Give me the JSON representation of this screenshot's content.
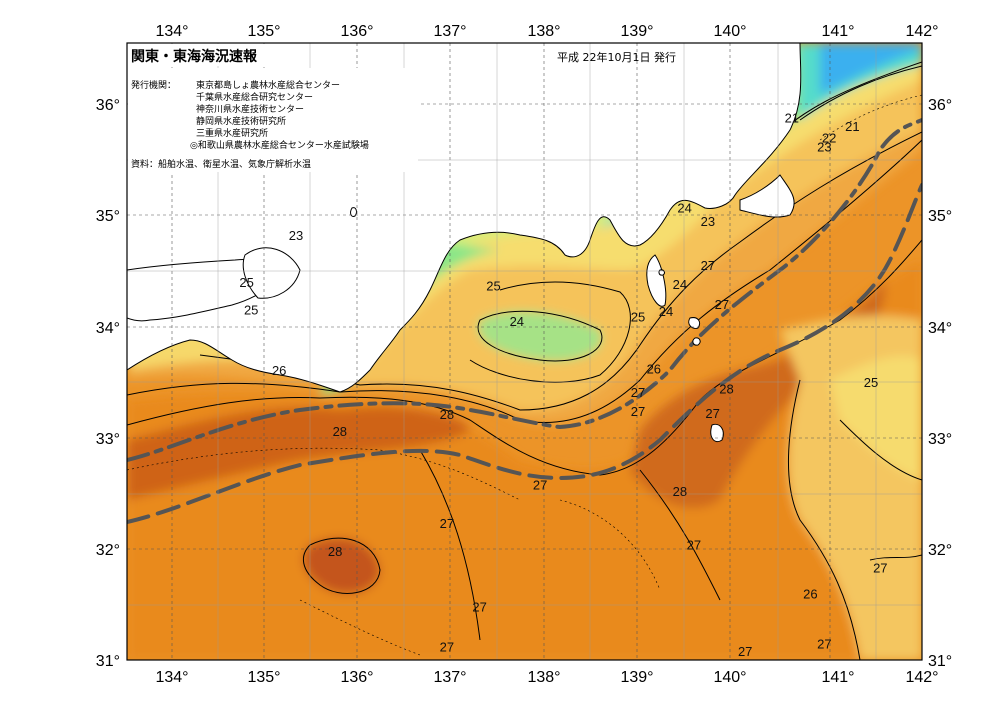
{
  "header": {
    "title": "関東・東海海況速報",
    "date": "平成 22年10月1日 発行",
    "issuer_label": "発行機関：",
    "issuers": [
      "東京都島しょ農林水産総合センター",
      "千葉県水産総合研究センター",
      "神奈川県水産技術センター",
      "静岡県水産技術研究所",
      "三重県水産研究所",
      "◎和歌山県農林水産総合センター水産試験場"
    ],
    "sources": "資料：船舶水温、衛星水温、気象庁解析水温"
  },
  "axes": {
    "lon_ticks": [
      "134°",
      "135°",
      "136°",
      "137°",
      "138°",
      "139°",
      "140°",
      "141°",
      "142°"
    ],
    "lat_ticks": [
      "36°",
      "35°",
      "34°",
      "33°",
      "32°",
      "31°"
    ]
  },
  "contour_labels": [
    {
      "text": "21",
      "lon": 140.65,
      "lat": 35.88
    },
    {
      "text": "21",
      "lon": 141.3,
      "lat": 35.8
    },
    {
      "text": "22",
      "lon": 141.05,
      "lat": 35.7
    },
    {
      "text": "23",
      "lon": 141.0,
      "lat": 35.62
    },
    {
      "text": "23",
      "lon": 135.33,
      "lat": 34.82
    },
    {
      "text": "24",
      "lon": 139.5,
      "lat": 35.07
    },
    {
      "text": "23",
      "lon": 139.75,
      "lat": 34.95
    },
    {
      "text": "27",
      "lon": 139.75,
      "lat": 34.55
    },
    {
      "text": "25",
      "lon": 134.8,
      "lat": 34.4
    },
    {
      "text": "25",
      "lon": 134.85,
      "lat": 34.15
    },
    {
      "text": "25",
      "lon": 137.45,
      "lat": 34.37
    },
    {
      "text": "24",
      "lon": 139.45,
      "lat": 34.38
    },
    {
      "text": "24",
      "lon": 139.3,
      "lat": 34.14
    },
    {
      "text": "25",
      "lon": 139.0,
      "lat": 34.09
    },
    {
      "text": "27",
      "lon": 139.9,
      "lat": 34.2
    },
    {
      "text": "24",
      "lon": 137.7,
      "lat": 34.05
    },
    {
      "text": "26",
      "lon": 135.15,
      "lat": 33.61
    },
    {
      "text": "26",
      "lon": 139.17,
      "lat": 33.62
    },
    {
      "text": "25",
      "lon": 141.5,
      "lat": 33.5
    },
    {
      "text": "28",
      "lon": 139.95,
      "lat": 33.44
    },
    {
      "text": "27",
      "lon": 139.0,
      "lat": 33.41
    },
    {
      "text": "28",
      "lon": 136.95,
      "lat": 33.21
    },
    {
      "text": "27",
      "lon": 139.0,
      "lat": 33.24
    },
    {
      "text": "27",
      "lon": 139.8,
      "lat": 33.22
    },
    {
      "text": "28",
      "lon": 135.8,
      "lat": 33.06
    },
    {
      "text": "27",
      "lon": 137.95,
      "lat": 32.58
    },
    {
      "text": "28",
      "lon": 139.45,
      "lat": 32.52
    },
    {
      "text": "27",
      "lon": 136.95,
      "lat": 32.23
    },
    {
      "text": "27",
      "lon": 139.6,
      "lat": 32.04
    },
    {
      "text": "28",
      "lon": 135.75,
      "lat": 31.98
    },
    {
      "text": "27",
      "lon": 141.6,
      "lat": 31.83
    },
    {
      "text": "26",
      "lon": 140.85,
      "lat": 31.6
    },
    {
      "text": "27",
      "lon": 137.3,
      "lat": 31.48
    },
    {
      "text": "27",
      "lon": 140.15,
      "lat": 31.08
    },
    {
      "text": "27",
      "lon": 136.95,
      "lat": 31.12
    },
    {
      "text": "27",
      "lon": 141.0,
      "lat": 31.15
    }
  ],
  "legend_colors": {
    "t21": "#3ab0ef",
    "t22": "#4fc7ea",
    "t23": "#55dccb",
    "t24": "#8ae688",
    "t25": "#d8ed7a",
    "t26": "#f6d86a",
    "t27": "#f0a640",
    "t28": "#e98a1c",
    "t29": "#c8561a",
    "land": "#ffffff",
    "coast": "#000000",
    "kuroshio": "#555555"
  }
}
